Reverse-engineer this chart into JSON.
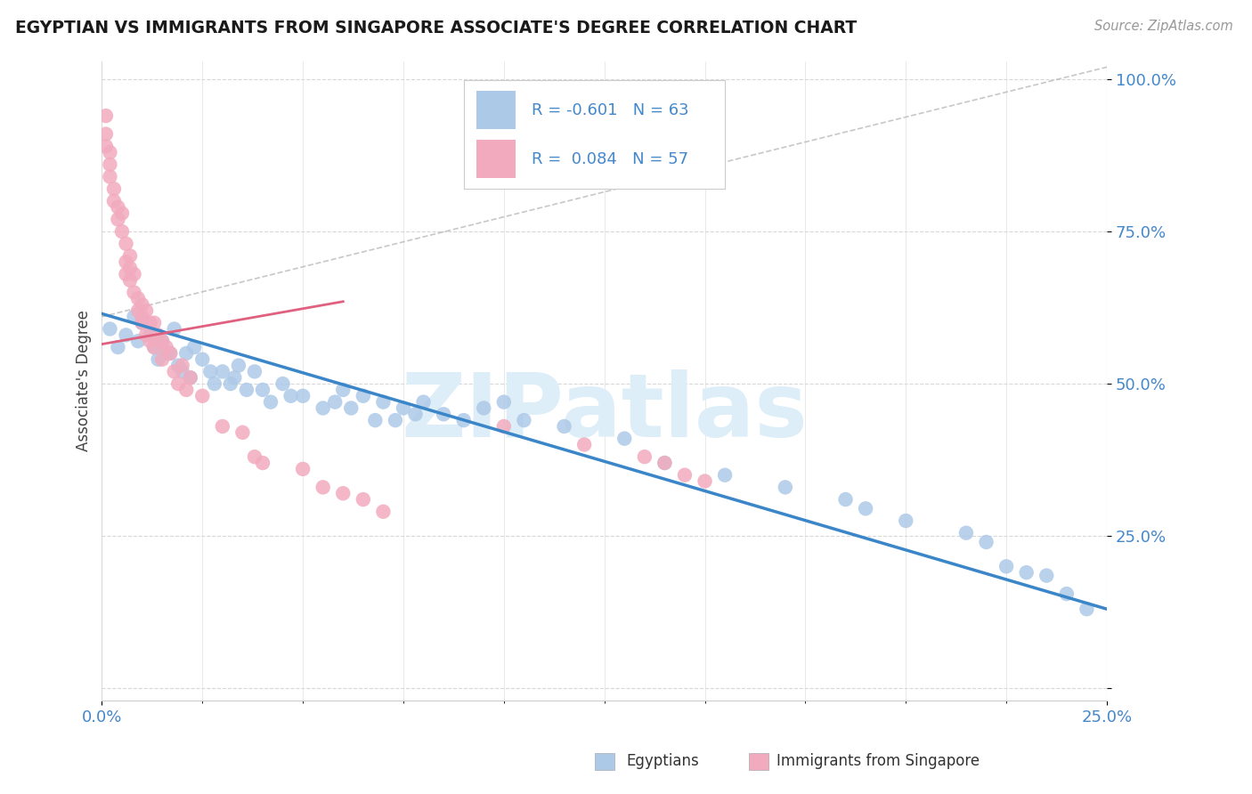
{
  "title": "EGYPTIAN VS IMMIGRANTS FROM SINGAPORE ASSOCIATE'S DEGREE CORRELATION CHART",
  "source": "Source: ZipAtlas.com",
  "ylabel": "Associate's Degree",
  "xlim": [
    0.0,
    0.25
  ],
  "ylim": [
    -0.02,
    1.03
  ],
  "ytick_vals": [
    0.0,
    0.25,
    0.5,
    0.75,
    1.0
  ],
  "ytick_labels": [
    "",
    "25.0%",
    "50.0%",
    "75.0%",
    "100.0%"
  ],
  "xtick_vals": [
    0.0,
    0.25
  ],
  "xtick_labels": [
    "0.0%",
    "25.0%"
  ],
  "blue_R": -0.601,
  "blue_N": 63,
  "pink_R": 0.084,
  "pink_N": 57,
  "blue_color": "#adc9e8",
  "pink_color": "#f2abbe",
  "blue_line_color": "#3a86c8",
  "pink_line_color": "#e06080",
  "ref_line_color": "#b0b0b0",
  "legend_R_color": "#4488cc",
  "tick_color": "#4488cc",
  "watermark_color": "#ddeef8",
  "blue_line_x": [
    0.0,
    0.25
  ],
  "blue_line_y": [
    0.615,
    0.13
  ],
  "pink_line_x": [
    0.0,
    0.06
  ],
  "pink_line_y": [
    0.565,
    0.635
  ],
  "ref_line_x": [
    0.0,
    0.25
  ],
  "ref_line_y": [
    0.61,
    1.02
  ],
  "blue_x": [
    0.002,
    0.004,
    0.006,
    0.008,
    0.009,
    0.01,
    0.012,
    0.013,
    0.014,
    0.015,
    0.016,
    0.017,
    0.018,
    0.019,
    0.02,
    0.021,
    0.022,
    0.023,
    0.025,
    0.027,
    0.028,
    0.03,
    0.032,
    0.033,
    0.034,
    0.036,
    0.038,
    0.04,
    0.042,
    0.045,
    0.047,
    0.05,
    0.055,
    0.058,
    0.06,
    0.062,
    0.065,
    0.068,
    0.07,
    0.073,
    0.075,
    0.078,
    0.08,
    0.085,
    0.09,
    0.095,
    0.1,
    0.105,
    0.115,
    0.13,
    0.14,
    0.155,
    0.17,
    0.185,
    0.19,
    0.2,
    0.215,
    0.22,
    0.225,
    0.23,
    0.235,
    0.24,
    0.245
  ],
  "blue_y": [
    0.59,
    0.56,
    0.58,
    0.61,
    0.57,
    0.6,
    0.58,
    0.56,
    0.54,
    0.57,
    0.55,
    0.55,
    0.59,
    0.53,
    0.52,
    0.55,
    0.51,
    0.56,
    0.54,
    0.52,
    0.5,
    0.52,
    0.5,
    0.51,
    0.53,
    0.49,
    0.52,
    0.49,
    0.47,
    0.5,
    0.48,
    0.48,
    0.46,
    0.47,
    0.49,
    0.46,
    0.48,
    0.44,
    0.47,
    0.44,
    0.46,
    0.45,
    0.47,
    0.45,
    0.44,
    0.46,
    0.47,
    0.44,
    0.43,
    0.41,
    0.37,
    0.35,
    0.33,
    0.31,
    0.295,
    0.275,
    0.255,
    0.24,
    0.2,
    0.19,
    0.185,
    0.155,
    0.13
  ],
  "pink_x": [
    0.001,
    0.001,
    0.001,
    0.002,
    0.002,
    0.002,
    0.003,
    0.003,
    0.004,
    0.004,
    0.005,
    0.005,
    0.006,
    0.006,
    0.006,
    0.007,
    0.007,
    0.007,
    0.008,
    0.008,
    0.009,
    0.009,
    0.01,
    0.01,
    0.01,
    0.011,
    0.011,
    0.012,
    0.012,
    0.013,
    0.013,
    0.014,
    0.015,
    0.015,
    0.016,
    0.017,
    0.018,
    0.019,
    0.02,
    0.021,
    0.022,
    0.025,
    0.03,
    0.035,
    0.038,
    0.04,
    0.05,
    0.055,
    0.06,
    0.065,
    0.07,
    0.1,
    0.12,
    0.135,
    0.14,
    0.145,
    0.15
  ],
  "pink_y": [
    0.94,
    0.91,
    0.89,
    0.88,
    0.86,
    0.84,
    0.82,
    0.8,
    0.79,
    0.77,
    0.78,
    0.75,
    0.73,
    0.7,
    0.68,
    0.71,
    0.69,
    0.67,
    0.68,
    0.65,
    0.64,
    0.62,
    0.63,
    0.6,
    0.61,
    0.62,
    0.58,
    0.6,
    0.57,
    0.6,
    0.56,
    0.58,
    0.57,
    0.54,
    0.56,
    0.55,
    0.52,
    0.5,
    0.53,
    0.49,
    0.51,
    0.48,
    0.43,
    0.42,
    0.38,
    0.37,
    0.36,
    0.33,
    0.32,
    0.31,
    0.29,
    0.43,
    0.4,
    0.38,
    0.37,
    0.35,
    0.34
  ]
}
